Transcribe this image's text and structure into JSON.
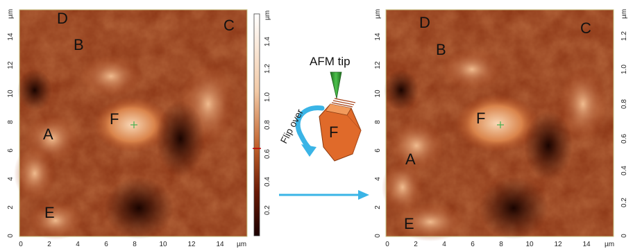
{
  "unit": "µm",
  "left_image": {
    "x_ticks": [
      "0",
      "2",
      "4",
      "6",
      "8",
      "10",
      "12",
      "14"
    ],
    "y_ticks": [
      "0",
      "2",
      "4",
      "6",
      "8",
      "10",
      "12",
      "14"
    ],
    "x_unit": "µm",
    "y_unit": "µm",
    "labels": [
      "D",
      "B",
      "C",
      "A",
      "F",
      "E"
    ]
  },
  "colorbar_left": {
    "unit": "µm",
    "ticks": [
      "1.4",
      "1.2",
      "1.0",
      "0.8",
      "0.6",
      "0.4",
      "0.2"
    ]
  },
  "middle": {
    "tip_label": "AFM tip",
    "flip_label": "Flip over",
    "crystal_label": "F"
  },
  "right_image": {
    "x_ticks": [
      "0",
      "2",
      "4",
      "6",
      "8",
      "10",
      "12",
      "14"
    ],
    "y_ticks": [
      "0",
      "2",
      "4",
      "6",
      "8",
      "10",
      "12",
      "14"
    ],
    "x_unit": "µm",
    "y_unit": "µm",
    "labels": [
      "D",
      "B",
      "C",
      "A",
      "F",
      "E"
    ]
  },
  "colorbar_right": {
    "unit": "µm",
    "ticks": [
      "1.2",
      "1.0",
      "0.8",
      "0.6",
      "0.4",
      "0.2",
      "0"
    ]
  },
  "colors": {
    "afm_dark": "#2a0800",
    "afm_mid": "#a8431a",
    "afm_light": "#f4c8a0",
    "arrow": "#3ab4e6",
    "crystal": "#e06a2a",
    "tip": "#2f9a2f"
  }
}
